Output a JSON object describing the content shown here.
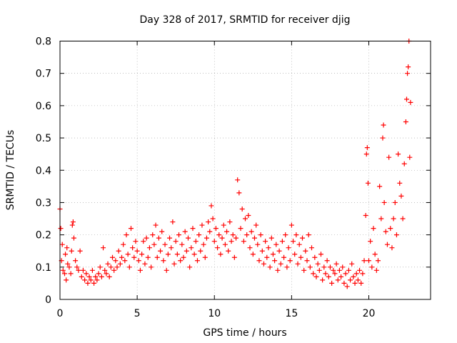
{
  "chart_data": {
    "type": "scatter",
    "title": "Day 328 of 2017, SRMTID for receiver djig",
    "xlabel": "GPS time / hours",
    "ylabel": "SRMTID / TECUs",
    "xlim": [
      0,
      24
    ],
    "ylim": [
      0,
      0.8
    ],
    "xticks": [
      0,
      5,
      10,
      15,
      20
    ],
    "xtick_labels": [
      "0",
      "5",
      "10",
      "15",
      "20"
    ],
    "yticks": [
      0,
      0.1,
      0.2,
      0.3,
      0.4,
      0.5,
      0.6,
      0.7,
      0.8
    ],
    "ytick_labels": [
      "0",
      "0.1",
      "0.2",
      "0.3",
      "0.4",
      "0.5",
      "0.6",
      "0.7",
      "0.8"
    ],
    "grid": true,
    "marker": "+",
    "color": "#ff0000",
    "series": [
      {
        "name": "SRMTID djig",
        "points": [
          [
            0.0,
            0.28
          ],
          [
            0.05,
            0.22
          ],
          [
            0.1,
            0.12
          ],
          [
            0.15,
            0.17
          ],
          [
            0.2,
            0.09
          ],
          [
            0.3,
            0.08
          ],
          [
            0.35,
            0.14
          ],
          [
            0.4,
            0.06
          ],
          [
            0.45,
            0.16
          ],
          [
            0.5,
            0.11
          ],
          [
            0.6,
            0.1
          ],
          [
            0.7,
            0.08
          ],
          [
            0.75,
            0.15
          ],
          [
            0.8,
            0.23
          ],
          [
            0.85,
            0.24
          ],
          [
            0.9,
            0.19
          ],
          [
            1.0,
            0.12
          ],
          [
            1.1,
            0.1
          ],
          [
            1.2,
            0.09
          ],
          [
            1.3,
            0.15
          ],
          [
            1.4,
            0.07
          ],
          [
            1.5,
            0.09
          ],
          [
            1.6,
            0.06
          ],
          [
            1.7,
            0.08
          ],
          [
            1.8,
            0.05
          ],
          [
            1.9,
            0.07
          ],
          [
            2.0,
            0.06
          ],
          [
            2.1,
            0.09
          ],
          [
            2.2,
            0.05
          ],
          [
            2.3,
            0.07
          ],
          [
            2.4,
            0.06
          ],
          [
            2.5,
            0.08
          ],
          [
            2.6,
            0.1
          ],
          [
            2.7,
            0.07
          ],
          [
            2.8,
            0.16
          ],
          [
            2.9,
            0.09
          ],
          [
            3.0,
            0.08
          ],
          [
            3.1,
            0.11
          ],
          [
            3.2,
            0.07
          ],
          [
            3.3,
            0.1
          ],
          [
            3.4,
            0.13
          ],
          [
            3.5,
            0.09
          ],
          [
            3.6,
            0.12
          ],
          [
            3.7,
            0.1
          ],
          [
            3.8,
            0.15
          ],
          [
            3.9,
            0.11
          ],
          [
            4.0,
            0.13
          ],
          [
            4.1,
            0.17
          ],
          [
            4.2,
            0.12
          ],
          [
            4.3,
            0.2
          ],
          [
            4.4,
            0.14
          ],
          [
            4.5,
            0.1
          ],
          [
            4.6,
            0.22
          ],
          [
            4.7,
            0.16
          ],
          [
            4.8,
            0.13
          ],
          [
            4.9,
            0.18
          ],
          [
            5.0,
            0.15
          ],
          [
            5.1,
            0.12
          ],
          [
            5.2,
            0.09
          ],
          [
            5.3,
            0.14
          ],
          [
            5.4,
            0.18
          ],
          [
            5.5,
            0.11
          ],
          [
            5.6,
            0.19
          ],
          [
            5.7,
            0.13
          ],
          [
            5.8,
            0.16
          ],
          [
            5.9,
            0.1
          ],
          [
            6.0,
            0.2
          ],
          [
            6.1,
            0.17
          ],
          [
            6.2,
            0.23
          ],
          [
            6.3,
            0.13
          ],
          [
            6.4,
            0.19
          ],
          [
            6.5,
            0.15
          ],
          [
            6.6,
            0.21
          ],
          [
            6.7,
            0.12
          ],
          [
            6.8,
            0.17
          ],
          [
            6.9,
            0.09
          ],
          [
            7.0,
            0.14
          ],
          [
            7.1,
            0.19
          ],
          [
            7.2,
            0.16
          ],
          [
            7.3,
            0.24
          ],
          [
            7.4,
            0.11
          ],
          [
            7.5,
            0.18
          ],
          [
            7.6,
            0.14
          ],
          [
            7.7,
            0.2
          ],
          [
            7.8,
            0.12
          ],
          [
            7.9,
            0.17
          ],
          [
            8.0,
            0.13
          ],
          [
            8.1,
            0.21
          ],
          [
            8.2,
            0.15
          ],
          [
            8.3,
            0.19
          ],
          [
            8.4,
            0.1
          ],
          [
            8.5,
            0.16
          ],
          [
            8.6,
            0.22
          ],
          [
            8.7,
            0.14
          ],
          [
            8.8,
            0.18
          ],
          [
            8.9,
            0.12
          ],
          [
            9.0,
            0.2
          ],
          [
            9.1,
            0.15
          ],
          [
            9.2,
            0.23
          ],
          [
            9.3,
            0.17
          ],
          [
            9.4,
            0.13
          ],
          [
            9.5,
            0.19
          ],
          [
            9.6,
            0.24
          ],
          [
            9.7,
            0.21
          ],
          [
            9.8,
            0.29
          ],
          [
            9.9,
            0.25
          ],
          [
            10.0,
            0.18
          ],
          [
            10.1,
            0.22
          ],
          [
            10.2,
            0.16
          ],
          [
            10.3,
            0.2
          ],
          [
            10.4,
            0.14
          ],
          [
            10.5,
            0.19
          ],
          [
            10.6,
            0.23
          ],
          [
            10.7,
            0.17
          ],
          [
            10.8,
            0.21
          ],
          [
            10.9,
            0.15
          ],
          [
            11.0,
            0.24
          ],
          [
            11.1,
            0.18
          ],
          [
            11.2,
            0.2
          ],
          [
            11.3,
            0.13
          ],
          [
            11.4,
            0.19
          ],
          [
            11.5,
            0.37
          ],
          [
            11.6,
            0.33
          ],
          [
            11.7,
            0.22
          ],
          [
            11.8,
            0.28
          ],
          [
            11.9,
            0.18
          ],
          [
            12.0,
            0.25
          ],
          [
            12.1,
            0.2
          ],
          [
            12.2,
            0.26
          ],
          [
            12.3,
            0.16
          ],
          [
            12.4,
            0.21
          ],
          [
            12.5,
            0.14
          ],
          [
            12.6,
            0.19
          ],
          [
            12.7,
            0.23
          ],
          [
            12.8,
            0.17
          ],
          [
            12.9,
            0.12
          ],
          [
            13.0,
            0.2
          ],
          [
            13.1,
            0.15
          ],
          [
            13.2,
            0.11
          ],
          [
            13.3,
            0.18
          ],
          [
            13.4,
            0.13
          ],
          [
            13.5,
            0.16
          ],
          [
            13.6,
            0.1
          ],
          [
            13.7,
            0.19
          ],
          [
            13.8,
            0.14
          ],
          [
            13.9,
            0.12
          ],
          [
            14.0,
            0.17
          ],
          [
            14.1,
            0.09
          ],
          [
            14.2,
            0.15
          ],
          [
            14.3,
            0.11
          ],
          [
            14.4,
            0.18
          ],
          [
            14.5,
            0.13
          ],
          [
            14.6,
            0.2
          ],
          [
            14.7,
            0.1
          ],
          [
            14.8,
            0.16
          ],
          [
            14.9,
            0.12
          ],
          [
            15.0,
            0.23
          ],
          [
            15.1,
            0.18
          ],
          [
            15.2,
            0.14
          ],
          [
            15.3,
            0.2
          ],
          [
            15.4,
            0.11
          ],
          [
            15.5,
            0.17
          ],
          [
            15.6,
            0.13
          ],
          [
            15.7,
            0.19
          ],
          [
            15.8,
            0.09
          ],
          [
            15.9,
            0.15
          ],
          [
            16.0,
            0.12
          ],
          [
            16.1,
            0.2
          ],
          [
            16.2,
            0.1
          ],
          [
            16.3,
            0.16
          ],
          [
            16.4,
            0.08
          ],
          [
            16.5,
            0.13
          ],
          [
            16.6,
            0.07
          ],
          [
            16.7,
            0.11
          ],
          [
            16.8,
            0.09
          ],
          [
            16.9,
            0.14
          ],
          [
            17.0,
            0.06
          ],
          [
            17.1,
            0.1
          ],
          [
            17.2,
            0.08
          ],
          [
            17.3,
            0.12
          ],
          [
            17.4,
            0.07
          ],
          [
            17.5,
            0.1
          ],
          [
            17.6,
            0.05
          ],
          [
            17.7,
            0.09
          ],
          [
            17.8,
            0.08
          ],
          [
            17.9,
            0.11
          ],
          [
            18.0,
            0.06
          ],
          [
            18.1,
            0.09
          ],
          [
            18.2,
            0.07
          ],
          [
            18.3,
            0.1
          ],
          [
            18.4,
            0.05
          ],
          [
            18.5,
            0.08
          ],
          [
            18.6,
            0.04
          ],
          [
            18.7,
            0.09
          ],
          [
            18.8,
            0.06
          ],
          [
            18.9,
            0.11
          ],
          [
            19.0,
            0.07
          ],
          [
            19.1,
            0.05
          ],
          [
            19.2,
            0.08
          ],
          [
            19.3,
            0.06
          ],
          [
            19.4,
            0.09
          ],
          [
            19.5,
            0.05
          ],
          [
            19.6,
            0.08
          ],
          [
            19.7,
            0.12
          ],
          [
            19.8,
            0.26
          ],
          [
            19.85,
            0.45
          ],
          [
            19.9,
            0.47
          ],
          [
            19.95,
            0.36
          ],
          [
            20.0,
            0.12
          ],
          [
            20.1,
            0.18
          ],
          [
            20.2,
            0.1
          ],
          [
            20.3,
            0.22
          ],
          [
            20.4,
            0.14
          ],
          [
            20.5,
            0.09
          ],
          [
            20.6,
            0.12
          ],
          [
            20.7,
            0.35
          ],
          [
            20.8,
            0.25
          ],
          [
            20.9,
            0.5
          ],
          [
            20.95,
            0.54
          ],
          [
            21.0,
            0.3
          ],
          [
            21.1,
            0.21
          ],
          [
            21.2,
            0.17
          ],
          [
            21.3,
            0.44
          ],
          [
            21.4,
            0.22
          ],
          [
            21.5,
            0.16
          ],
          [
            21.6,
            0.25
          ],
          [
            21.7,
            0.3
          ],
          [
            21.8,
            0.2
          ],
          [
            21.9,
            0.45
          ],
          [
            22.0,
            0.36
          ],
          [
            22.1,
            0.32
          ],
          [
            22.2,
            0.25
          ],
          [
            22.3,
            0.42
          ],
          [
            22.4,
            0.55
          ],
          [
            22.45,
            0.62
          ],
          [
            22.5,
            0.7
          ],
          [
            22.55,
            0.72
          ],
          [
            22.6,
            0.8
          ],
          [
            22.65,
            0.44
          ],
          [
            22.7,
            0.61
          ]
        ]
      }
    ]
  }
}
